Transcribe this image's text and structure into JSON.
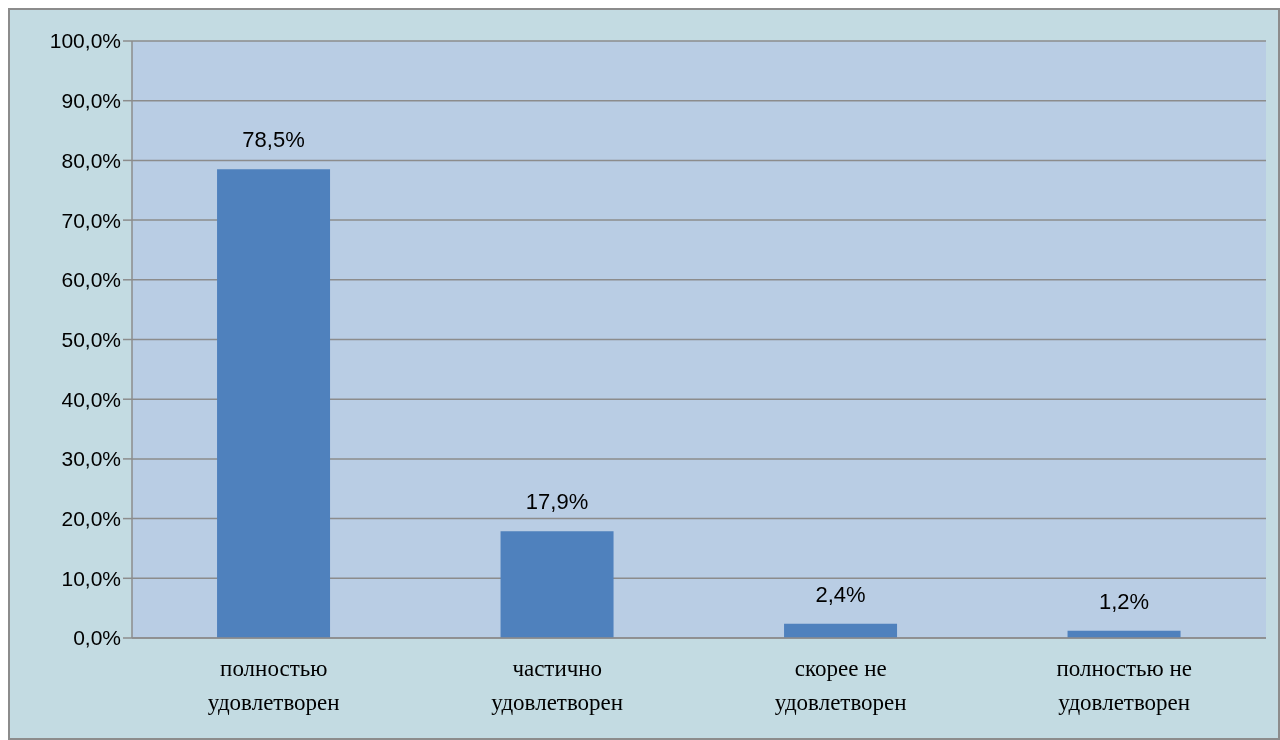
{
  "chart_data": {
    "type": "bar",
    "categories": [
      "полностью удовлетворен",
      "частично удовлетворен",
      "скорее не удовлетворен",
      "полностью не удовлетворен"
    ],
    "values": [
      78.5,
      17.9,
      2.4,
      1.2
    ],
    "color": "#4f81bd",
    "ylim": [
      0,
      100
    ],
    "yticks": [
      {
        "value": 0,
        "label": "0,0%"
      },
      {
        "value": 10,
        "label": "10,0%"
      },
      {
        "value": 20,
        "label": "20,0%"
      },
      {
        "value": 30,
        "label": "30,0%"
      },
      {
        "value": 40,
        "label": "40,0%"
      },
      {
        "value": 50,
        "label": "50,0%"
      },
      {
        "value": 60,
        "label": "60,0%"
      },
      {
        "value": 70,
        "label": "70,0%"
      },
      {
        "value": 80,
        "label": "80,0%"
      },
      {
        "value": 90,
        "label": "90,0%"
      },
      {
        "value": 100,
        "label": "100,0%"
      }
    ],
    "grid": "y",
    "value_labels": [
      "78,5%",
      "17,9%",
      "2,4%",
      "1,2%"
    ]
  }
}
